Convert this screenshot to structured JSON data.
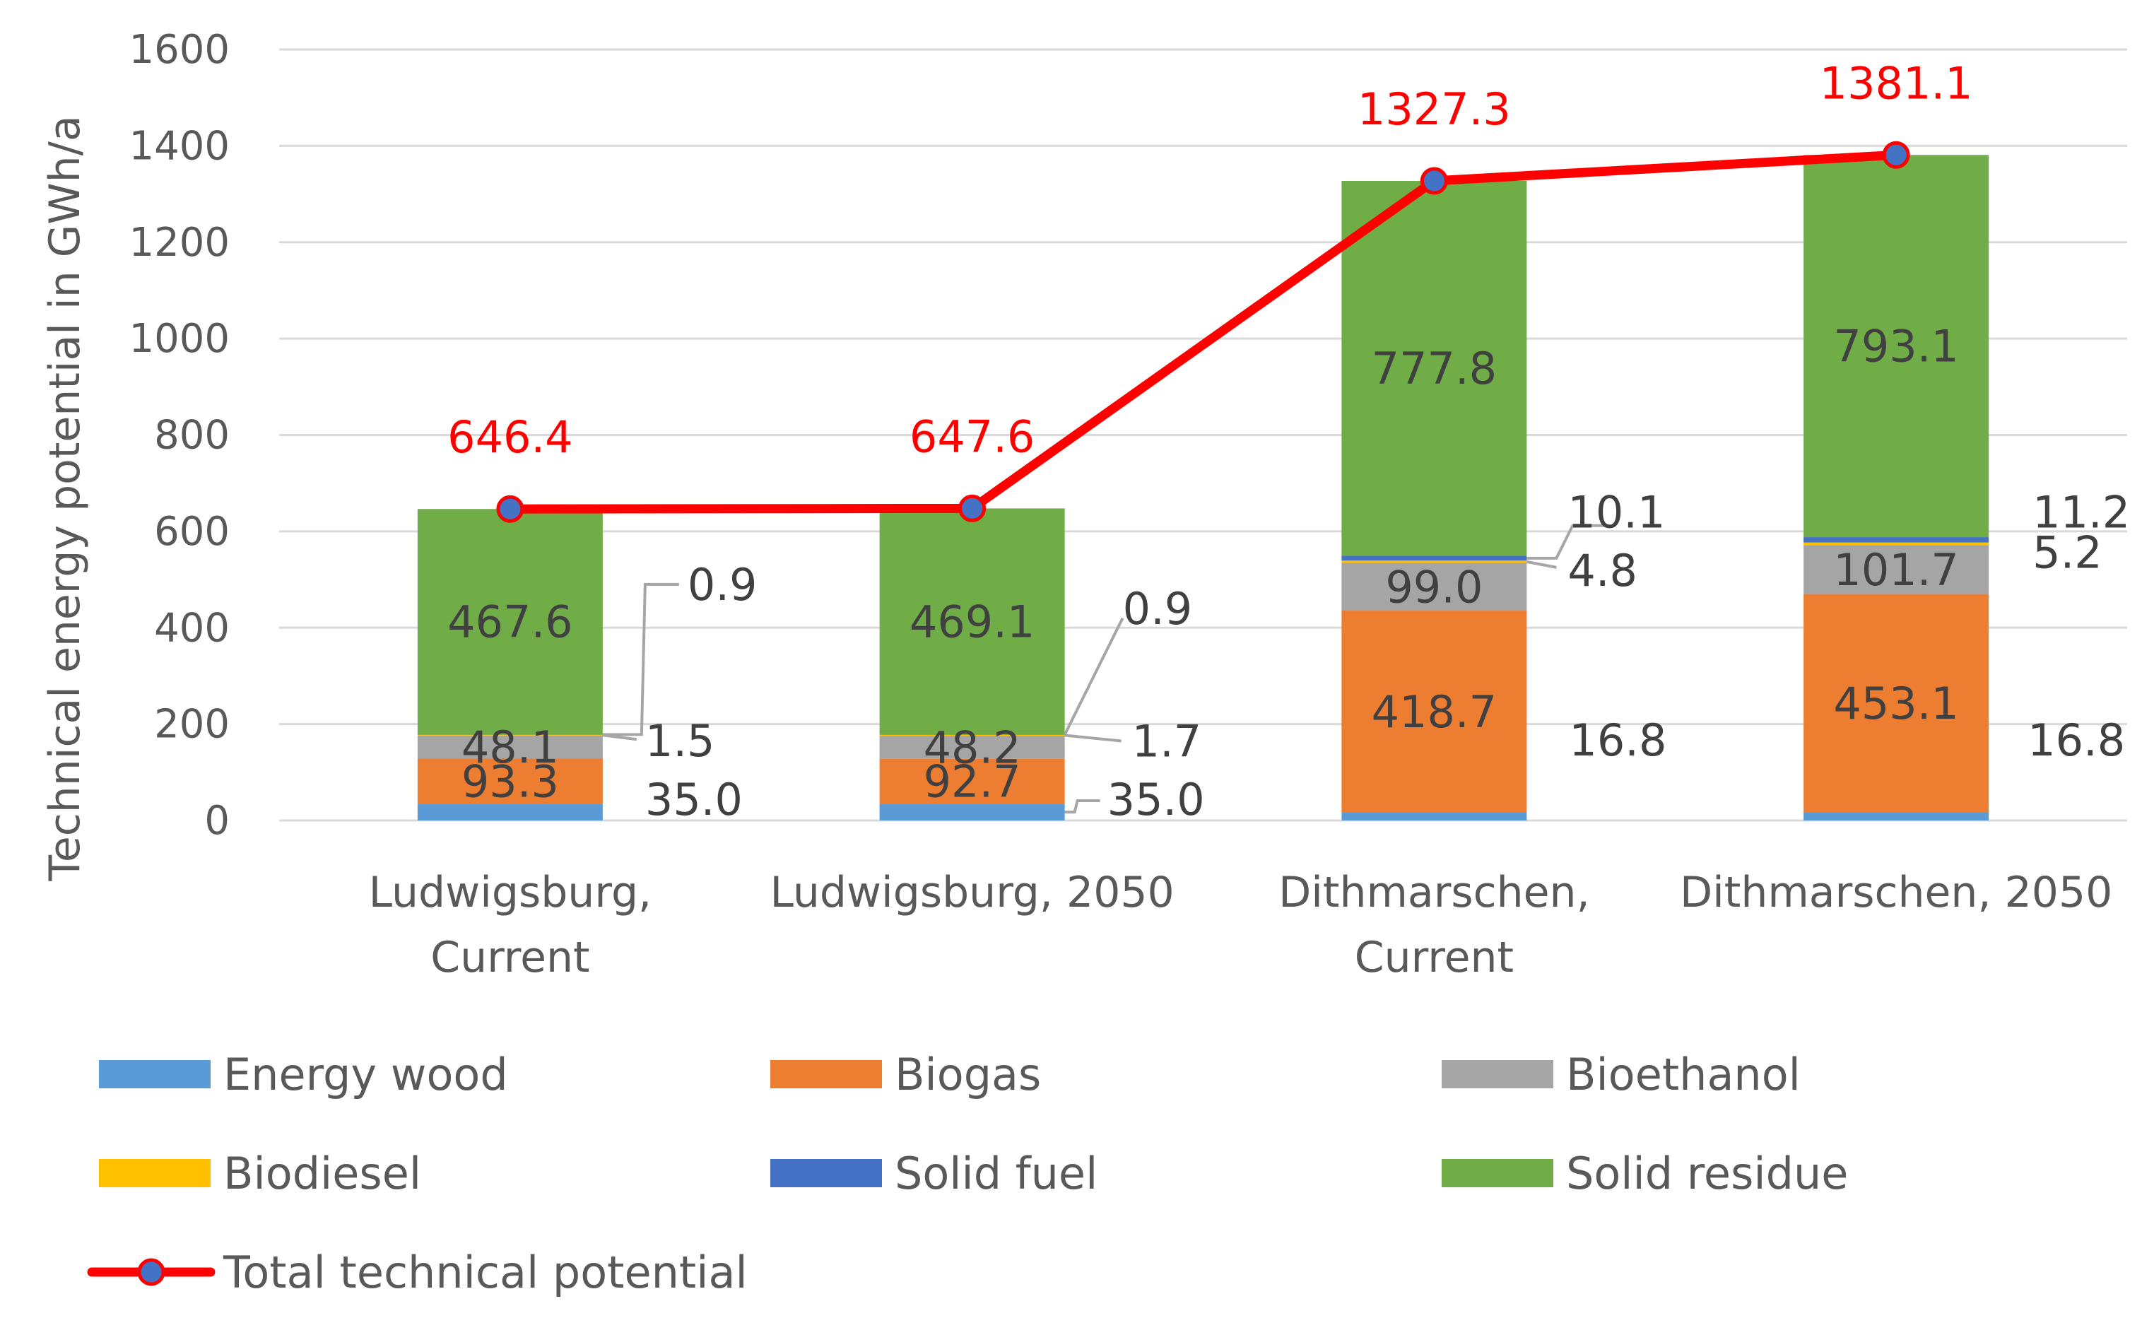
{
  "chart_data": {
    "type": "bar",
    "stacked": true,
    "title": "",
    "ylabel": "Technical energy potential in GWh/a",
    "xlabel": "",
    "ylim": [
      0,
      1600
    ],
    "yticks": [
      0,
      200,
      400,
      600,
      800,
      1000,
      1200,
      1400,
      1600
    ],
    "grid": true,
    "legend_position": "bottom",
    "categories": [
      [
        "Ludwigsburg,",
        "Current"
      ],
      [
        "Ludwigsburg, 2050"
      ],
      [
        "Dithmarschen,",
        "Current"
      ],
      [
        "Dithmarschen, 2050"
      ]
    ],
    "series": [
      {
        "name": "Energy wood",
        "color": "#5b9bd5",
        "values": [
          35.0,
          35.0,
          16.8,
          16.8
        ],
        "labels": [
          "35.0",
          "35.0",
          "16.8",
          "16.8"
        ]
      },
      {
        "name": "Biogas",
        "color": "#ed7d31",
        "values": [
          93.3,
          92.7,
          418.7,
          453.1
        ],
        "labels": [
          "93.3",
          "92.7",
          "418.7",
          "453.1"
        ]
      },
      {
        "name": "Bioethanol",
        "color": "#a5a5a5",
        "values": [
          48.1,
          48.2,
          99.0,
          101.7
        ],
        "labels": [
          "48.1",
          "48.2",
          "99.0",
          "101.7"
        ]
      },
      {
        "name": "Biodiesel",
        "color": "#ffc000",
        "values": [
          1.5,
          1.7,
          4.8,
          5.2
        ],
        "labels": [
          "1.5",
          "1.7",
          "4.8",
          "5.2"
        ]
      },
      {
        "name": "Solid fuel",
        "color": "#4472c4",
        "values": [
          0.9,
          0.9,
          10.1,
          11.2
        ],
        "labels": [
          "0.9",
          "0.9",
          "10.1",
          "11.2"
        ]
      },
      {
        "name": "Solid residue",
        "color": "#70ad47",
        "values": [
          467.6,
          469.1,
          777.8,
          793.1
        ],
        "labels": [
          "467.6",
          "469.1",
          "777.8",
          "793.1"
        ]
      }
    ],
    "line": {
      "name": "Total technical potential",
      "color": "#ff0000",
      "marker_color": "#4472c4",
      "values": [
        646.4,
        647.6,
        1327.3,
        1381.1
      ],
      "labels": [
        "646.4",
        "647.6",
        "1327.3",
        "1381.1"
      ]
    }
  }
}
